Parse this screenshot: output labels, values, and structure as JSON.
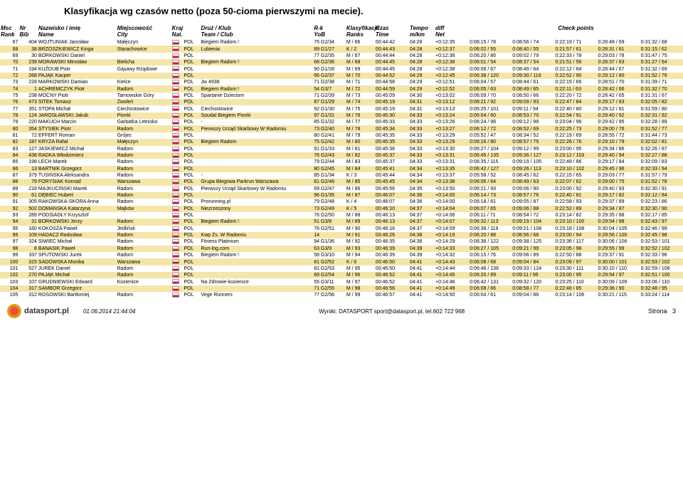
{
  "title": "Klasyfikacja wg czasów netto (poza 50-cioma pierwszymi na mecie).",
  "headers": {
    "msc": "Msc",
    "rank": "Rank",
    "nr": "Nr",
    "bib": "Bib",
    "nazwisko": "Nazwisko i imię",
    "name": "Name",
    "miejscowosc": "Miejscowość",
    "city": "City",
    "kraj": "Kraj",
    "nat": "Nat.",
    "druz": "Druż / Klub",
    "team": "Team / Club",
    "rk": "R-k",
    "yob": "YoB",
    "klasyfikacje": "Klasyfikacje",
    "ranks": "Ranks",
    "czas": "Czas",
    "time": "Time",
    "tempo": "Tempo",
    "mkm": "m/km",
    "diff": "diff",
    "net": "Net",
    "checkpoints": "Check points"
  },
  "colors": {
    "even_bg": "#f5e6a8",
    "flag_red": "#dc143c"
  },
  "rows": [
    {
      "msc": "67",
      "nr": "404",
      "name": "WOJTUNIAK Jarosław",
      "city": "Małęczyn",
      "nat": "POL",
      "club": "Biegiem Radom !",
      "rk": "75 G2/34",
      "kl": "M / 66",
      "czas": "00:44:42",
      "tempo": "04:28",
      "diff": "+0:12:35",
      "cp1": "0:06:15 / 78",
      "cp2": "0:08:56 / 74",
      "cp3": "0:22:19 / 71",
      "cp4": "0:28:48 / 69",
      "cp5": "0:31:32 / 68"
    },
    {
      "msc": "68",
      "nr": "38",
      "name": "BRZOSZKIEWICZ Kinga",
      "city": "Starachowice",
      "nat": "POL",
      "club": "Lubienia",
      "rk": "89 G1/27",
      "kl": "K / 2",
      "czas": "00:44:43",
      "tempo": "04:28",
      "diff": "+0:12:37",
      "cp1": "0:06:02 / 55",
      "cp2": "0:08:40 / 55",
      "cp3": "0:21:57 / 61",
      "cp4": "0:28:31 / 61",
      "cp5": "0:31:15 / 62"
    },
    {
      "msc": "69",
      "nr": "30",
      "name": "BORKOWSKI Daniel",
      "city": "",
      "nat": "POL",
      "club": "",
      "rk": "77 G2/35",
      "kl": "M / 67",
      "czas": "00:44:44",
      "tempo": "04:28",
      "diff": "+0:12:38",
      "cp1": "0:06:20 / 86",
      "cp2": "0:09:02 / 79",
      "cp3": "0:22:33 / 78",
      "cp4": "0:29:03 / 78",
      "cp5": "0:31:47 / 75"
    },
    {
      "msc": "70",
      "nr": "239",
      "name": "MORAWSKI Mirosław",
      "city": "Bielicha",
      "nat": "POL",
      "club": "Biegiem Radom !",
      "rk": "68 G2/36",
      "kl": "M / 68",
      "czas": "00:44:45",
      "tempo": "04:28",
      "diff": "+0:12:38",
      "cp1": "0:06:01 / 54",
      "cp2": "0:08:37 / 54",
      "cp3": "0:21:51 / 56",
      "cp4": "0:28:37 / 63",
      "cp5": "0:31:27 / 64"
    },
    {
      "msc": "71",
      "nr": "194",
      "name": "KUŹDUB Piotr",
      "city": "Gąsawy Rządowe",
      "nat": "POL",
      "club": "",
      "rk": "90 G1/28",
      "kl": "M / 69",
      "czas": "00:44:45",
      "tempo": "04:28",
      "diff": "+0:12:38",
      "cp1": "0:06:08 / 67",
      "cp2": "0:08:49 / 64",
      "cp3": "0:22:12 / 64",
      "cp4": "0:28:44 / 67",
      "cp5": "0:31:32 / 69"
    },
    {
      "msc": "72",
      "nr": "268",
      "name": "PAJĄK Kacper",
      "city": "",
      "nat": "POL",
      "club": "",
      "rk": "66 G2/37",
      "kl": "M / 70",
      "czas": "00:44:52",
      "tempo": "04:29",
      "diff": "+0:12:45",
      "cp1": "0:06:38 / 120",
      "cp2": "0:09:30 / 116",
      "cp3": "0:22:52 / 90",
      "cp4": "0:29:12 / 80",
      "cp5": "0:31:52 / 76"
    },
    {
      "msc": "73",
      "nr": "228",
      "name": "MARKOWSKI Damian",
      "city": "Kielce",
      "nat": "POL",
      "club": "Jw 4938",
      "rk": "71 G2/38",
      "kl": "M / 71",
      "czas": "00:44:58",
      "tempo": "04:29",
      "diff": "+0:12:51",
      "cp1": "0:06:04 / 57",
      "cp2": "0:08:44 / 61",
      "cp3": "0:22:15 / 66",
      "cp4": "0:28:51 / 70",
      "cp5": "0:31:39 / 71"
    },
    {
      "msc": "74",
      "nr": "1",
      "name": "ACHREMCZYK Piotr",
      "city": "Radom",
      "nat": "POL",
      "club": "Biegiem Radom !",
      "rk": "54 G3/7",
      "kl": "M / 72",
      "czas": "00:44:59",
      "tempo": "04:29",
      "diff": "+0:12:52",
      "cp1": "0:06:05 / 63",
      "cp2": "0:08:49 / 65",
      "cp3": "0:22:11 / 63",
      "cp4": "0:28:42 / 66",
      "cp5": "0:31:32 / 70"
    },
    {
      "msc": "75",
      "nr": "238",
      "name": "MOCNY Piotr",
      "city": "Tarnowskie Góry",
      "nat": "POL",
      "club": "Spartanie Dzieciom",
      "rk": "71 G2/39",
      "kl": "M / 73",
      "czas": "00:45:09",
      "tempo": "04:30",
      "diff": "+0:13:02",
      "cp1": "0:06:09 / 70",
      "cp2": "0:08:50 / 66",
      "cp3": "0:22:20 / 72",
      "cp4": "0:28:42 / 65",
      "cp5": "0:31:31 / 67"
    },
    {
      "msc": "76",
      "nr": "473",
      "name": "SITEK Tomasz",
      "city": "Zwoleń",
      "nat": "POL",
      "club": "",
      "rk": "87 G1/29",
      "kl": "M / 74",
      "czas": "00:45:19",
      "tempo": "04:31",
      "diff": "+0:13:12",
      "cp1": "0:06:21 / 92",
      "cp2": "0:09:09 / 93",
      "cp3": "0:22:47 / 84",
      "cp4": "0:29:17 / 83",
      "cp5": "0:32:05 / 82"
    },
    {
      "msc": "77",
      "nr": "351",
      "name": "STOPA Michał",
      "city": "Ciechostowice",
      "nat": "POL",
      "club": "Ciechostowice",
      "rk": "92 G1/30",
      "kl": "M / 75",
      "czas": "00:45:19",
      "tempo": "04:31",
      "diff": "+0:13:13",
      "cp1": "0:06:25 / 101",
      "cp2": "0:09:11 / 94",
      "cp3": "0:22:40 / 80",
      "cp4": "0:29:12 / 81",
      "cp5": "0:31:59 / 80"
    },
    {
      "msc": "78",
      "nr": "124",
      "name": "JAROSŁAWSKI Jakub",
      "city": "Pionki",
      "nat": "POL",
      "club": "Soudal Biegiem Pionki",
      "rk": "97 G1/31",
      "kl": "M / 76",
      "czas": "00:45:30",
      "tempo": "04:33",
      "diff": "+0:13:24",
      "cp1": "0:06:04 / 60",
      "cp2": "0:08:53 / 70",
      "cp3": "0:22:54 / 91",
      "cp4": "0:29:40 / 92",
      "cp5": "0:32:31 / 92"
    },
    {
      "msc": "79",
      "nr": "220",
      "name": "MAKUCH Marcin",
      "city": "Garbatka Letnisko",
      "nat": "POL",
      "club": "-",
      "rk": "85 G1/32",
      "kl": "M / 77",
      "czas": "00:45:33",
      "tempo": "04:33",
      "diff": "+0:13:26",
      "cp1": "0:06:24 / 98",
      "cp2": "0:09:12 / 98",
      "cp3": "0:23:04 / 96",
      "cp4": "0:29:42 / 95",
      "cp5": "0:32:28 / 89"
    },
    {
      "msc": "80",
      "nr": "354",
      "name": "STYSIEK Piotr",
      "city": "Radom",
      "nat": "POL",
      "club": "Pierwszy Urząd Skarbowy W Radomiu",
      "rk": "73 G2/40",
      "kl": "M / 78",
      "czas": "00:45:34",
      "tempo": "04:33",
      "diff": "+0:13:27",
      "cp1": "0:06:12 / 72",
      "cp2": "0:08:52 / 69",
      "cp3": "0:22:25 / 73",
      "cp4": "0:29:00 / 76",
      "cp5": "0:31:52 / 77"
    },
    {
      "msc": "81",
      "nr": "72",
      "name": "EFFERT Roman",
      "city": "Grójec",
      "nat": "POL",
      "club": "",
      "rk": "80 G2/41",
      "kl": "M / 79",
      "czas": "00:45:35",
      "tempo": "04:33",
      "diff": "+0:13:29",
      "cp1": "0:05:52 / 47",
      "cp2": "0:08:34 / 52",
      "cp3": "0:22:19 / 69",
      "cp4": "0:28:55 / 72",
      "cp5": "0:31:44 / 73"
    },
    {
      "msc": "82",
      "nr": "187",
      "name": "KRYZA Rafał",
      "city": "Małęczyn",
      "nat": "POL",
      "club": "Biegiem Radom",
      "rk": "75 G2/42",
      "kl": "M / 80",
      "czas": "00:45:35",
      "tempo": "04:33",
      "diff": "+0:13:29",
      "cp1": "0:06:16 / 80",
      "cp2": "0:08:57 / 75",
      "cp3": "0:22:26 / 76",
      "cp4": "0:29:10 / 79",
      "cp5": "0:32:02 / 81"
    },
    {
      "msc": "83",
      "nr": "127",
      "name": "JAŚKIEWICZ Michał",
      "city": "Radom",
      "nat": "POL",
      "club": "",
      "rk": "91 G1/33",
      "kl": "M / 81",
      "czas": "00:45:36",
      "tempo": "04:33",
      "diff": "+0:13:30",
      "cp1": "0:06:27 / 104",
      "cp2": "0:09:12 / 99",
      "cp3": "0:23:00 / 95",
      "cp4": "0:29:34 / 86",
      "cp5": "0:32:26 / 87"
    },
    {
      "msc": "84",
      "nr": "438",
      "name": "RADKA Włodzimierz",
      "city": "Radom",
      "nat": "POL",
      "club": "",
      "rk": "76 G2/43",
      "kl": "M / 82",
      "czas": "00:45:37",
      "tempo": "04:33",
      "diff": "+0:13:31",
      "cp1": "0:06:45 / 135",
      "cp2": "0:09:36 / 127",
      "cp3": "0:23:12 / 103",
      "cp4": "0:29:40 / 94",
      "cp5": "0:32:27 / 88"
    },
    {
      "msc": "85",
      "nr": "198",
      "name": "LECH Marek",
      "city": "Radom",
      "nat": "POL",
      "club": "",
      "rk": "79 G2/44",
      "kl": "M / 83",
      "czas": "00:45:37",
      "tempo": "04:33",
      "diff": "+0:13:31",
      "cp1": "0:06:35 / 115",
      "cp2": "0:09:19 / 105",
      "cp3": "0:22:48 / 86",
      "cp4": "0:29:17 / 84",
      "cp5": "0:32:09 / 83"
    },
    {
      "msc": "86",
      "nr": "13",
      "name": "BARTNIK Grzegorz",
      "city": "Radom",
      "nat": "POL",
      "club": "",
      "rk": "80 G2/45",
      "kl": "M / 84",
      "czas": "00:45:41",
      "tempo": "04:34",
      "diff": "+0:13:35",
      "cp1": "0:06:42 / 127",
      "cp2": "0:09:26 / 113",
      "cp3": "0:23:10 / 102",
      "cp4": "0:29:45 / 96",
      "cp5": "0:32:33 / 94"
    },
    {
      "msc": "87",
      "nr": "379",
      "name": "TUSIŃSKA Aleksandra",
      "city": "Radom",
      "nat": "POL",
      "club": "-",
      "rk": "85 G1/34",
      "kl": "K / 3",
      "czas": "00:45:44",
      "tempo": "04:34",
      "diff": "+0:13:37",
      "cp1": "0:05:58 / 52",
      "cp2": "0:08:45 / 62",
      "cp3": "0:22:15 / 65",
      "cp4": "0:29:03 / 77",
      "cp5": "0:31:57 / 79"
    },
    {
      "msc": "88",
      "nr": "79",
      "name": "FORYSIAK Konrad",
      "city": "Warszawa",
      "nat": "POL",
      "club": "Grupa Biegowa Parkrun Warszawa",
      "rk": "81 G2/46",
      "kl": "M / 85",
      "czas": "00:45:45",
      "tempo": "04:34",
      "diff": "+0:13:38",
      "cp1": "0:06:06 / 64",
      "cp2": "0:08:49 / 63",
      "cp3": "0:22:07 / 62",
      "cp4": "0:29:00 / 75",
      "cp5": "0:31:52 / 78"
    },
    {
      "msc": "89",
      "nr": "218",
      "name": "MAJKUCIŃSKI Marek",
      "city": "Radom",
      "nat": "POL",
      "club": "Pierwszy Urząd Skarbowy W Radomiu",
      "rk": "69 G2/47",
      "kl": "M / 86",
      "czas": "00:45:56",
      "tempo": "04:35",
      "diff": "+0:13:50",
      "cp1": "0:06:21 / 93",
      "cp2": "0:09:06 / 90",
      "cp3": "0:23:00 / 92",
      "cp4": "0:29:40 / 93",
      "cp5": "0:32:30 / 91"
    },
    {
      "msc": "90",
      "nr": "61",
      "name": "DĘBIEC Hubert",
      "city": "Radom",
      "nat": "POL",
      "club": "",
      "rk": "96 G1/35",
      "kl": "M / 87",
      "czas": "00:46:07",
      "tempo": "04:36",
      "diff": "+0:14:00",
      "cp1": "0:06:14 / 73",
      "cp2": "0:08:57 / 76",
      "cp3": "0:22:40 / 81",
      "cp4": "0:29:17 / 82",
      "cp5": "0:32:12 / 84"
    },
    {
      "msc": "91",
      "nr": "305",
      "name": "RAKOWSKA-SKORA Anna",
      "city": "Radom",
      "nat": "POL",
      "club": "Prorunning.pl",
      "rk": "79 G2/48",
      "kl": "K / 4",
      "czas": "00:46:07",
      "tempo": "04:36",
      "diff": "+0:14:00",
      "cp1": "0:06:18 / 81",
      "cp2": "0:09:05 / 87",
      "cp3": "0:22:58 / 93",
      "cp4": "0:29:37 / 89",
      "cp5": "0:32:23 / 86"
    },
    {
      "msc": "92",
      "nr": "502",
      "name": "DOMAŃSKA Katarzyna",
      "city": "Majków",
      "nat": "POL",
      "club": "Niezrzeszony",
      "rk": "73 G2/49",
      "kl": "K / 5",
      "czas": "00:46:10",
      "tempo": "04:37",
      "diff": "+0:14:04",
      "cp1": "0:06:07 / 65",
      "cp2": "0:09:06 / 88",
      "cp3": "0:22:52 / 89",
      "cp4": "0:29:34 / 87",
      "cp5": "0:32:30 / 90"
    },
    {
      "msc": "93",
      "nr": "289",
      "name": "PODSIADŁY Krzysztof",
      "city": "",
      "nat": "POL",
      "club": "",
      "rk": "76 G2/50",
      "kl": "M / 88",
      "czas": "00:46:13",
      "tempo": "04:37",
      "diff": "+0:14:06",
      "cp1": "0:06:11 / 71",
      "cp2": "0:08:54 / 72",
      "cp3": "0:23:14 / 82",
      "cp4": "0:29:35 / 88",
      "cp5": "0:32:17 / 85"
    },
    {
      "msc": "94",
      "nr": "31",
      "name": "BORKOWSKI Jerzy",
      "city": "Radom",
      "nat": "POL",
      "club": "Biegiem Radom !",
      "rk": "51 G3/8",
      "kl": "M / 89",
      "czas": "00:46:13",
      "tempo": "04:37",
      "diff": "+0:14:07",
      "cp1": "0:06:32 / 113",
      "cp2": "0:09:19 / 104",
      "cp3": "0:23:10 / 100",
      "cp4": "0:29:54 / 98",
      "cp5": "0:32:43 / 97"
    },
    {
      "msc": "95",
      "nr": "160",
      "name": "KOKOSZA Paweł",
      "city": "Jedlińsk",
      "nat": "POL",
      "club": "",
      "rk": "76 G2/51",
      "kl": "M / 90",
      "czas": "00:46:16",
      "tempo": "04:37",
      "diff": "+0:14:09",
      "cp1": "0:06:38 / 119",
      "cp2": "0:09:21 / 108",
      "cp3": "0:23:18 / 108",
      "cp4": "0:30:04 / 105",
      "cp5": "0:32:46 / 99"
    },
    {
      "msc": "96",
      "nr": "109",
      "name": "HADACZ Radosław",
      "city": "Radom",
      "nat": "POL",
      "club": "Kwp Zs. W Radomiu",
      "rk": "14 ",
      "kl": "M / 91",
      "czas": "00:46:26",
      "tempo": "04:38",
      "diff": "+0:14:19",
      "cp1": "0:06:20 / 88",
      "cp2": "0:08:56 / 68",
      "cp3": "0:23:00 / 94",
      "cp4": "0:29:56 / 100",
      "cp5": "0:32:45 / 98"
    },
    {
      "msc": "97",
      "nr": "324",
      "name": "SIWIEC Michał",
      "city": "Radom",
      "nat": "POL",
      "club": "Fitness Platinium",
      "rk": "94 G1/36",
      "kl": "M / 92",
      "czas": "00:46:35",
      "tempo": "04:38",
      "diff": "+0:14:29",
      "cp1": "0:06:38 / 122",
      "cp2": "0:09:38 / 125",
      "cp3": "0:23:36 / 117",
      "cp4": "0:30:06 / 106",
      "cp5": "0:32:53 / 101"
    },
    {
      "msc": "98",
      "nr": "8",
      "name": "BANASIK Paweł",
      "city": "Radom",
      "nat": "POL",
      "club": "Run-log.com",
      "rk": "63 G3/9",
      "kl": "M / 93",
      "czas": "00:46:39",
      "tempo": "04:39",
      "diff": "+0:14:33",
      "cp1": "0:06:27 / 105",
      "cp2": "0:09:21 / 99",
      "cp3": "0:23:05 / 98",
      "cp4": "0:29:55 / 99",
      "cp5": "0:32:52 / 102"
    },
    {
      "msc": "99",
      "nr": "337",
      "name": "SPUTOWSKI Jurek",
      "city": "Radom",
      "nat": "POL",
      "club": "Biegiem Radom !",
      "rk": "58 G3/10",
      "kl": "M / 94",
      "czas": "00:46:39",
      "tempo": "04:39",
      "diff": "+0:14:32",
      "cp1": "0:06:15 / 76",
      "cp2": "0:09:06 / 89",
      "cp3": "0:22:50 / 88",
      "cp4": "0:29:37 / 91",
      "cp5": "0:32:33 / 96"
    },
    {
      "msc": "100",
      "nr": "315",
      "name": "SADOWSKA Monika",
      "city": "Warszawa",
      "nat": "POL",
      "club": "",
      "rk": "81 G2/52",
      "kl": "K / 6",
      "czas": "00:46:50",
      "tempo": "04:41",
      "diff": "+0:14:43",
      "cp1": "0:06:08 / 68",
      "cp2": "0:09:04 / 84",
      "cp3": "0:23:09 / 97",
      "cp4": "0:30:00 / 101",
      "cp5": "0:32:53 / 102"
    },
    {
      "msc": "101",
      "nr": "527",
      "name": "JUREK Daniel",
      "city": "Radom",
      "nat": "POL",
      "club": "",
      "rk": "81 G2/53",
      "kl": "M / 95",
      "czas": "00:46:50",
      "tempo": "04:41",
      "diff": "+0:14:44",
      "cp1": "0:06:46 / 136",
      "cp2": "0:09:33 / 124",
      "cp3": "0:23:30 / 111",
      "cp4": "0:30:10 / 110",
      "cp5": "0:32:59 / 106"
    },
    {
      "msc": "102",
      "nr": "270",
      "name": "PAJĄK Michał",
      "city": "Radom",
      "nat": "POL",
      "club": "",
      "rk": "69 G2/54",
      "kl": "M / 96",
      "czas": "00:46:52",
      "tempo": "04:41",
      "diff": "+0:14:45",
      "cp1": "0:06:20 / 89",
      "cp2": "0:09:11 / 96",
      "cp3": "0:23:00 / 95",
      "cp4": "0:29:54 / 97",
      "cp5": "0:32:51 / 100"
    },
    {
      "msc": "103",
      "nr": "107",
      "name": "GRUDNIEWSKI Edward",
      "city": "Kozienice",
      "nat": "POL",
      "club": "Na Zdrowie-kozienice",
      "rk": "55 G3/11",
      "kl": "M / 97",
      "czas": "00:46:52",
      "tempo": "04:41",
      "diff": "+0:14:46",
      "cp1": "0:06:42 / 131",
      "cp2": "0:09:32 / 120",
      "cp3": "0:23:25 / 110",
      "cp4": "0:30:09 / 109",
      "cp5": "0:33:06 / 110"
    },
    {
      "msc": "104",
      "nr": "317",
      "name": "SAMBOR Grzegorz",
      "city": "",
      "nat": "POL",
      "club": "",
      "rk": "71 G2/55",
      "kl": "M / 98",
      "czas": "00:46:56",
      "tempo": "04:41",
      "diff": "+0:14:49",
      "cp1": "0:06:08 / 66",
      "cp2": "0:08:58 / 77",
      "cp3": "0:22:48 / 85",
      "cp4": "0:29:36 / 90",
      "cp5": "0:32:48 / 95"
    },
    {
      "msc": "105",
      "nr": "312",
      "name": "ROSOWSKI Bartłomiej",
      "city": "Radom",
      "nat": "POL",
      "club": "Vege Runners",
      "rk": "77 G2/56",
      "kl": "M / 99",
      "czas": "00:46:57",
      "tempo": "04:41",
      "diff": "+0:14:50",
      "cp1": "0:06:04 / 61",
      "cp2": "0:09:04 / 86",
      "cp3": "0:23:14 / 106",
      "cp4": "0:30:21 / 115",
      "cp5": "0:33:24 / 114"
    }
  ],
  "footer": {
    "logo": "datasport.pl",
    "date": "01.06.2014 21:44:04",
    "center": "Wyniki: DATASPORT sport@datasport.pl, tel.602 722 968",
    "page": "Strona",
    "pagenum": "3"
  }
}
